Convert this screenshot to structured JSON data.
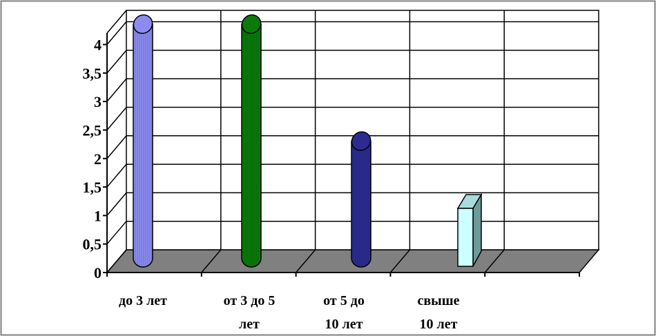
{
  "chart_data": {
    "type": "bar",
    "categories": [
      "до 3 лет",
      "от 3 до 5 лет",
      "от 5 до 10 лет",
      "свыше 10 лет",
      ""
    ],
    "category_lines": [
      [
        "до 3 лет"
      ],
      [
        "от 3 до 5",
        "лет"
      ],
      [
        "от 5 до",
        "10 лет"
      ],
      [
        "свыше",
        "10 лет"
      ],
      []
    ],
    "values": [
      4,
      4,
      2,
      1,
      null
    ],
    "bar_shapes": [
      "cylinder",
      "cylinder",
      "cylinder",
      "box",
      null
    ],
    "bar_colors": [
      "#8c8cf0",
      "#0a7a0a",
      "#2c2c90",
      "#ccffff",
      null
    ],
    "ylim": [
      0,
      4
    ],
    "y_ticks": [
      0,
      0.5,
      1,
      1.5,
      2,
      2.5,
      3,
      3.5,
      4
    ],
    "y_tick_labels": [
      "0",
      "0,5",
      "1",
      "1,5",
      "2",
      "2,5",
      "3",
      "3,5",
      "4"
    ],
    "grid": true,
    "floor_color": "#808080",
    "title": "",
    "xlabel": "",
    "ylabel": ""
  }
}
